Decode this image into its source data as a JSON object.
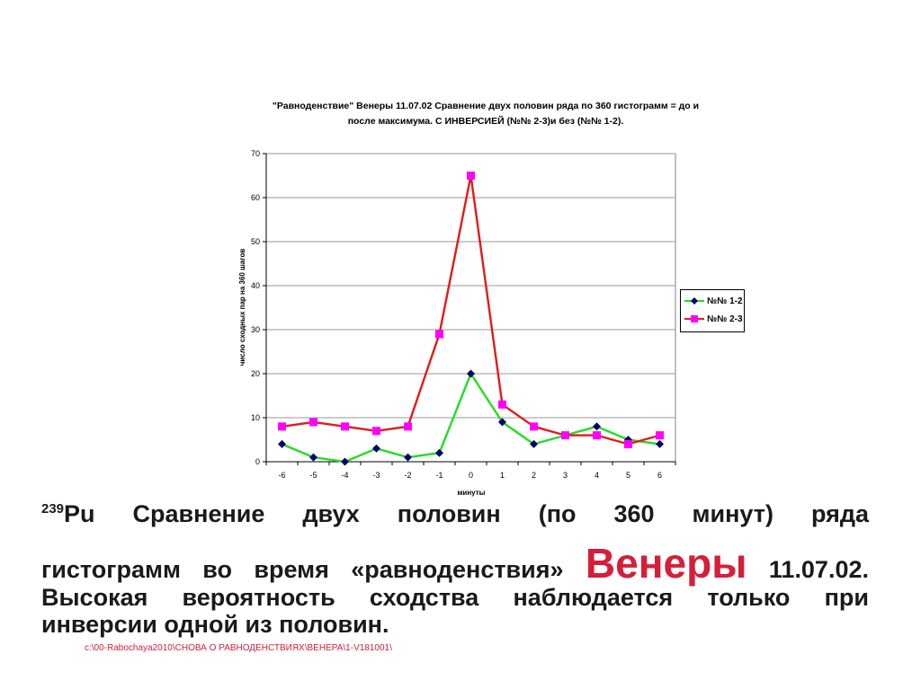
{
  "chart_data": {
    "type": "line",
    "title_lines": [
      "\"Равноденствие\" Венеры  11.07.02 Сравнение двух половин ряда по 360 гистограмм = до и",
      "после максимума. С ИНВЕРСИЕЙ (№№ 2-3)и без (№№ 1-2)."
    ],
    "xlabel": "минуты",
    "ylabel": "число сходных пар на 360 шагов",
    "x": [
      -6,
      -5,
      -4,
      -3,
      -2,
      -1,
      0,
      1,
      2,
      3,
      4,
      5,
      6
    ],
    "yticks": [
      0,
      10,
      20,
      30,
      40,
      50,
      60,
      70
    ],
    "ylim": [
      0,
      70
    ],
    "grid": "horizontal",
    "legend_position": "right",
    "series": [
      {
        "name": "№№ 1-2",
        "values": [
          4,
          1,
          0,
          3,
          1,
          2,
          20,
          9,
          4,
          6,
          8,
          5,
          4
        ],
        "color": "#22dd22",
        "marker": "diamond",
        "marker_color": "#00006e"
      },
      {
        "name": "№№ 2-3",
        "values": [
          8,
          9,
          8,
          7,
          8,
          29,
          65,
          13,
          8,
          6,
          6,
          4,
          6
        ],
        "color": "#e21a1a",
        "marker": "square",
        "marker_color": "#ff00ff"
      }
    ]
  },
  "caption": {
    "superscript": "239",
    "element": "Pu",
    "line1_rest": "Сравнение двух половин (по 360 минут) ряда",
    "line2_start": "гистограмм во время «равноденствия»",
    "highlight": "Венеры",
    "line2_end": "11.07.02.",
    "line3": "Высокая вероятность сходства наблюдается только при",
    "line4": "инверсии одной из половин."
  },
  "file_path": "c:\\00-Rabochaya2010\\СНОВА О РАВНОДЕНСТВИЯХ\\ВЕНЕРА\\1-V181001\\",
  "colors": {
    "highlight": "#d51f3a",
    "path": "#d51f3a"
  }
}
